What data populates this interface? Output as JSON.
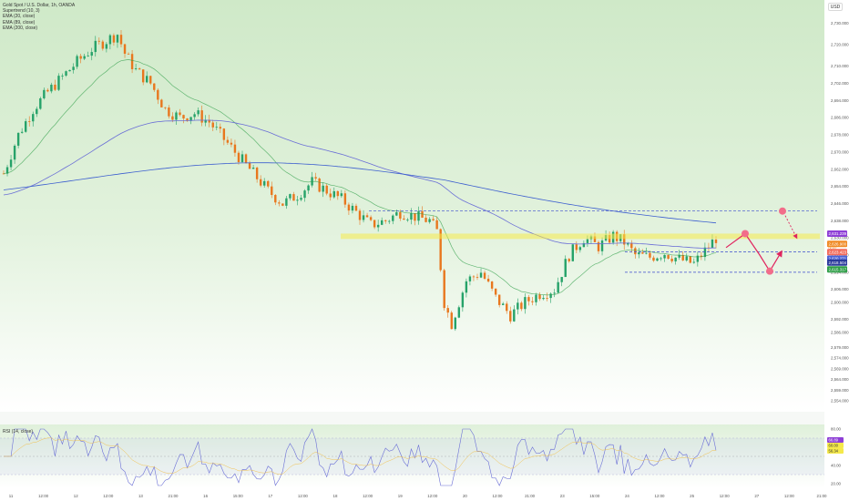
{
  "legend": {
    "title": "Gold Spot / U.S. Dollar, 1h, OANDA",
    "supertrend": "Supertrend (10, 3)",
    "ema1": "EMA (20, close)",
    "ema2": "EMA (89, close)",
    "ema3": "EMA (200, close)"
  },
  "rsi_label": "RSI (14, close)",
  "currency": "USD",
  "colors": {
    "bull": "#26a269",
    "bear": "#e8771e",
    "supertrend_up": "#2e9e47",
    "supertrend_down": "#e08a6a",
    "ema_fast": "#6a6ed6",
    "ema_slow": "#3d5fcf",
    "zone": "#f5e94a",
    "projection": "#e0245e",
    "dashed": "#3b4bcc"
  },
  "chart_data": [
    {
      "type": "candlestick",
      "title": "Gold Spot / U.S. Dollar, 1h, OANDA",
      "x_ticks": [
        "11",
        "12:00",
        "12",
        "12:00",
        "13",
        "21:00",
        "16",
        "15:00",
        "17",
        "12:00",
        "18",
        "12:00",
        "19",
        "12:00",
        "20",
        "12:00",
        "21:00",
        "23",
        "15:00",
        "24",
        "12:00",
        "25",
        "12:00",
        "27",
        "12:00",
        "21:00"
      ],
      "y_ticks": [
        2740.0,
        2730.0,
        2720.0,
        2710.0,
        2702.0,
        2694.0,
        2686.0,
        2678.0,
        2670.0,
        2662.0,
        2654.0,
        2646.0,
        2638.0,
        2630.0,
        2622.0,
        2614.0,
        2606.0,
        2600.0,
        2592.0,
        2586.0,
        2579.0,
        2574.0,
        2569.0,
        2564.0,
        2559.0,
        2554.0,
        2549.0
      ],
      "ylim": [
        2549,
        2740
      ],
      "price_labels": {
        "last_price": "2,631.239",
        "orange": "2,626.900",
        "orange_sub": "00:47",
        "red": "2,623.423",
        "blue": "2,620.271",
        "darkblue": "2,618.504",
        "green": "2,615.317"
      },
      "resistance_zone": [
        2629.5,
        2632
      ],
      "dashed_levels": [
        2642.5,
        2623.5,
        2614.0
      ],
      "dashed_left_start_tick": "18",
      "projection": {
        "points": [
          2625.5,
          2632.0,
          2622.0,
          2614.5,
          2623.0
        ],
        "target_up": 2642.5,
        "target_up_arrow_to": 2630.5
      }
    },
    {
      "type": "line",
      "title": "RSI (14, close)",
      "y_ticks": [
        80.0,
        60.0,
        40.0,
        20.0
      ],
      "levels": [
        70,
        50,
        30
      ],
      "labels": {
        "rsi": "66.89",
        "ma": "60.00",
        "low": "56.34"
      },
      "ylim": [
        15,
        85
      ]
    }
  ]
}
